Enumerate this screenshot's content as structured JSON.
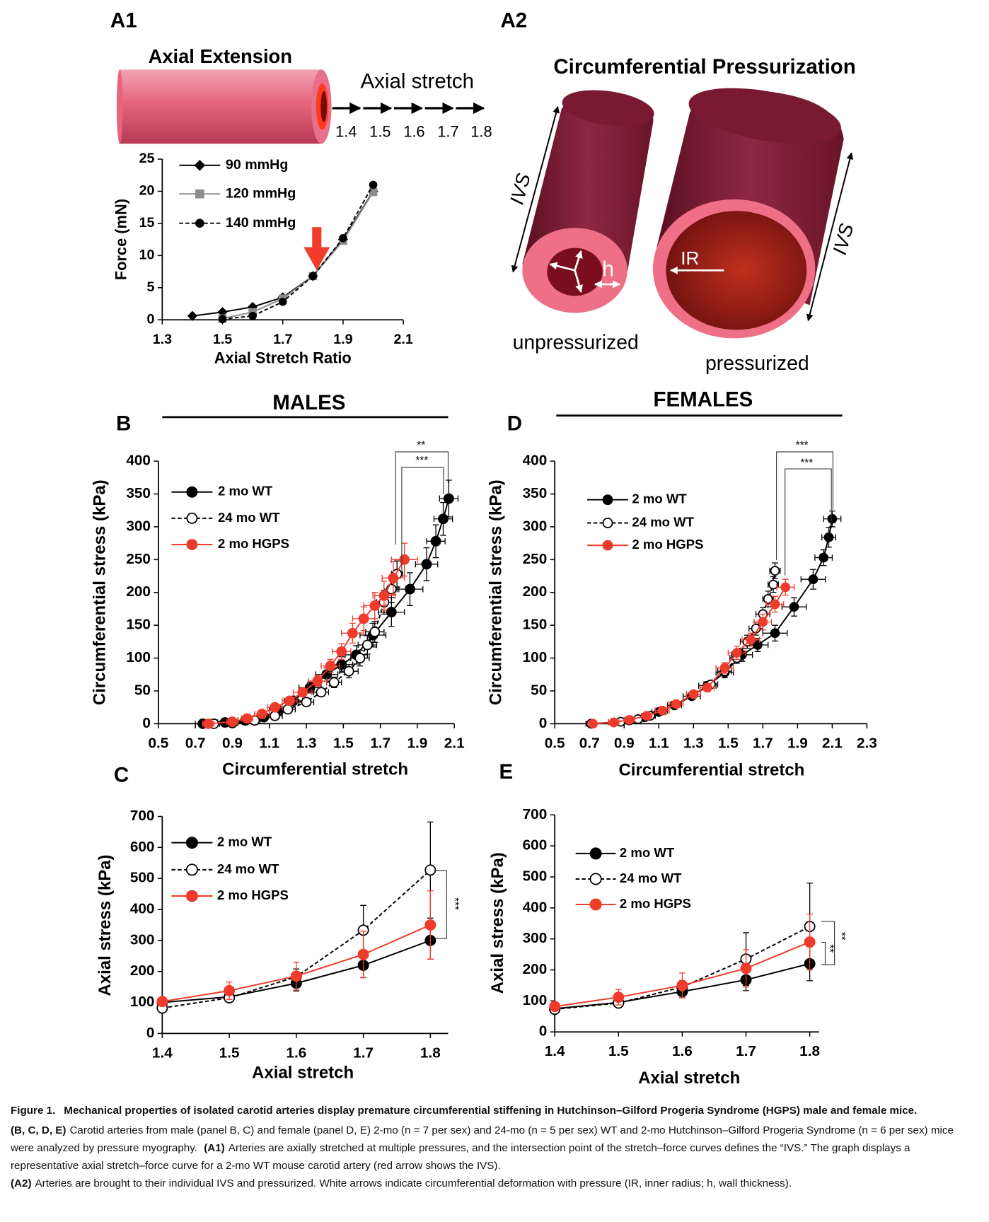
{
  "figure": {
    "a1": {
      "panel": "A1",
      "title": "Axial Extension",
      "stretch_label": "Axial stretch",
      "stretch_values": [
        1.4,
        1.5,
        1.6,
        1.7,
        1.8
      ]
    },
    "a2": {
      "panel": "A2",
      "title": "Circumferential Pressurization",
      "ivs_left": "IVS",
      "ivs_right": "IVS",
      "ir": "IR",
      "h": "h",
      "left_label": "unpressurized",
      "right_label": "pressurized"
    },
    "males": "MALES",
    "females": "FEMALES"
  },
  "chart_data": [
    {
      "type": "line",
      "xlabel": "Axial Stretch Ratio",
      "ylabel": "Force (mN)",
      "xlim": [
        1.3,
        2.1
      ],
      "xticks": [
        1.3,
        1.5,
        1.7,
        1.9,
        2.1
      ],
      "ylim": [
        0,
        25
      ],
      "yticks": [
        0,
        5,
        10,
        15,
        20,
        25
      ],
      "legend": "upper left",
      "series": [
        {
          "name": "90 mmHg",
          "color": "#000000",
          "marker": "diamond",
          "filled": true,
          "dashed": false,
          "x": [
            1.4,
            1.5,
            1.6,
            1.7,
            1.8,
            1.9,
            2.0
          ],
          "values": [
            0.6,
            1.2,
            2.0,
            3.5,
            6.8,
            12.5,
            20
          ]
        },
        {
          "name": "120 mmHg",
          "color": "#8c8c8c",
          "marker": "square",
          "filled": true,
          "dashed": false,
          "x": [
            1.5,
            1.6,
            1.7,
            1.8,
            1.9,
            2.0
          ],
          "values": [
            0.2,
            1.2,
            3.3,
            6.8,
            12.3,
            19.9
          ]
        },
        {
          "name": "140 mmHg",
          "color": "#000000",
          "marker": "circle",
          "filled": true,
          "dashed": true,
          "x": [
            1.5,
            1.6,
            1.7,
            1.8,
            1.9,
            2.0
          ],
          "values": [
            0.1,
            0.6,
            2.8,
            6.8,
            12.7,
            21
          ]
        }
      ]
    },
    {
      "type": "line",
      "panel": "B",
      "xlabel": "Circumferential stretch",
      "ylabel": "Circumferential stress (kPa)",
      "xlim": [
        0.5,
        2.1
      ],
      "xticks": [
        0.5,
        0.7,
        0.9,
        1.1,
        1.3,
        1.5,
        1.7,
        1.9,
        2.1
      ],
      "ylim": [
        0,
        400
      ],
      "yticks": [
        0,
        50,
        100,
        150,
        200,
        250,
        300,
        350,
        400
      ],
      "legend": "upper left",
      "annotations": [
        "**",
        "***"
      ],
      "series": [
        {
          "name": "2 mo WT",
          "color": "#000000",
          "marker": "circle",
          "filled": true,
          "dashed": false,
          "x": [
            0.74,
            0.86,
            0.97,
            1.07,
            1.15,
            1.23,
            1.32,
            1.41,
            1.49,
            1.57,
            1.66,
            1.76,
            1.86,
            1.95,
            2.0,
            2.04,
            2.07
          ],
          "values": [
            0,
            2,
            5,
            10,
            20,
            35,
            55,
            75,
            90,
            105,
            135,
            170,
            205,
            243,
            278,
            312,
            343
          ],
          "xerr": [
            0.04,
            0.04,
            0.04,
            0.05,
            0.05,
            0.05,
            0.06,
            0.06,
            0.06,
            0.06,
            0.07,
            0.07,
            0.07,
            0.06,
            0.05,
            0.05,
            0.05
          ],
          "yerr": [
            1,
            1,
            2,
            3,
            4,
            6,
            8,
            10,
            12,
            14,
            18,
            22,
            25,
            25,
            25,
            25,
            28
          ]
        },
        {
          "name": "24 mo WT",
          "color": "#000000",
          "marker": "circle",
          "filled": false,
          "dashed": true,
          "x": [
            0.8,
            0.9,
            1.02,
            1.13,
            1.2,
            1.3,
            1.38,
            1.45,
            1.53,
            1.59,
            1.63,
            1.67,
            1.72,
            1.76,
            1.79
          ],
          "values": [
            0,
            1,
            5,
            12,
            22,
            33,
            48,
            63,
            80,
            100,
            120,
            140,
            185,
            205,
            228
          ],
          "xerr": [
            0.03,
            0.03,
            0.03,
            0.04,
            0.04,
            0.04,
            0.04,
            0.04,
            0.05,
            0.05,
            0.05,
            0.05,
            0.04,
            0.04,
            0.03
          ],
          "yerr": [
            1,
            1,
            2,
            3,
            3,
            5,
            6,
            8,
            10,
            12,
            14,
            16,
            18,
            20,
            20
          ]
        },
        {
          "name": "2 mo HGPS",
          "color": "#ef3b2c",
          "marker": "circle",
          "filled": true,
          "dashed": false,
          "x": [
            0.77,
            0.9,
            0.98,
            1.06,
            1.13,
            1.21,
            1.28,
            1.36,
            1.43,
            1.49,
            1.55,
            1.61,
            1.67,
            1.72,
            1.77,
            1.83
          ],
          "values": [
            0,
            3,
            8,
            15,
            25,
            35,
            48,
            65,
            88,
            110,
            138,
            160,
            180,
            195,
            222,
            250
          ],
          "xerr": [
            0.03,
            0.03,
            0.03,
            0.04,
            0.04,
            0.04,
            0.05,
            0.05,
            0.05,
            0.05,
            0.06,
            0.06,
            0.06,
            0.06,
            0.06,
            0.07
          ],
          "yerr": [
            1,
            2,
            2,
            3,
            4,
            5,
            6,
            8,
            10,
            12,
            15,
            18,
            20,
            22,
            25,
            25
          ]
        }
      ]
    },
    {
      "type": "line",
      "panel": "D",
      "xlabel": "Circumferential stretch",
      "ylabel": "Circumferential stress (kPa)",
      "xlim": [
        0.5,
        2.3
      ],
      "xticks": [
        0.5,
        0.7,
        0.9,
        1.1,
        1.3,
        1.5,
        1.7,
        1.9,
        2.1,
        2.3
      ],
      "ylim": [
        0,
        400
      ],
      "yticks": [
        0,
        50,
        100,
        150,
        200,
        250,
        300,
        350,
        400
      ],
      "legend": "upper left",
      "annotations": [
        "***",
        "***"
      ],
      "series": [
        {
          "name": "2 mo WT",
          "color": "#000000",
          "marker": "circle",
          "filled": true,
          "dashed": false,
          "x": [
            0.71,
            0.84,
            0.93,
            1.02,
            1.1,
            1.19,
            1.29,
            1.38,
            1.48,
            1.58,
            1.67,
            1.77,
            1.88,
            1.99,
            2.05,
            2.08,
            2.1
          ],
          "values": [
            0,
            2,
            5,
            10,
            18,
            28,
            42,
            58,
            78,
            105,
            120,
            138,
            178,
            220,
            253,
            284,
            312
          ],
          "xerr": [
            0.03,
            0.03,
            0.03,
            0.04,
            0.04,
            0.04,
            0.05,
            0.05,
            0.05,
            0.06,
            0.06,
            0.07,
            0.07,
            0.07,
            0.05,
            0.04,
            0.05
          ],
          "yerr": [
            1,
            1,
            1,
            2,
            3,
            4,
            5,
            6,
            8,
            10,
            10,
            12,
            14,
            15,
            12,
            15,
            12
          ]
        },
        {
          "name": "24 mo WT",
          "color": "#000000",
          "marker": "circle",
          "filled": false,
          "dashed": true,
          "x": [
            0.71,
            0.88,
            0.98,
            1.05,
            1.12,
            1.2,
            1.3,
            1.4,
            1.48,
            1.55,
            1.61,
            1.66,
            1.7,
            1.73,
            1.76,
            1.77
          ],
          "values": [
            0,
            3,
            7,
            12,
            20,
            30,
            45,
            60,
            80,
            100,
            125,
            145,
            167,
            190,
            212,
            233
          ],
          "xerr": [
            0.02,
            0.02,
            0.03,
            0.03,
            0.03,
            0.03,
            0.04,
            0.04,
            0.04,
            0.04,
            0.04,
            0.04,
            0.04,
            0.03,
            0.03,
            0.03
          ],
          "yerr": [
            1,
            1,
            1,
            2,
            2,
            3,
            4,
            5,
            6,
            8,
            10,
            10,
            10,
            12,
            12,
            12
          ]
        },
        {
          "name": "2 mo HGPS",
          "color": "#ef3b2c",
          "marker": "circle",
          "filled": true,
          "dashed": false,
          "x": [
            0.72,
            0.84,
            0.93,
            1.03,
            1.12,
            1.2,
            1.3,
            1.38,
            1.48,
            1.55,
            1.63,
            1.7,
            1.77,
            1.83
          ],
          "values": [
            0,
            2,
            6,
            12,
            20,
            30,
            45,
            55,
            85,
            108,
            128,
            155,
            182,
            208
          ],
          "xerr": [
            0.02,
            0.03,
            0.03,
            0.03,
            0.04,
            0.04,
            0.04,
            0.04,
            0.05,
            0.05,
            0.05,
            0.05,
            0.05,
            0.05
          ],
          "yerr": [
            1,
            1,
            2,
            2,
            3,
            4,
            5,
            6,
            8,
            10,
            10,
            12,
            12,
            12
          ]
        }
      ]
    },
    {
      "type": "line",
      "panel": "C",
      "xlabel": "Axial stretch",
      "ylabel": "Axial stress (kPa)",
      "xlim": [
        1.4,
        1.8
      ],
      "xticks": [
        1.4,
        1.5,
        1.6,
        1.7,
        1.8
      ],
      "ylim": [
        0,
        700
      ],
      "yticks": [
        0,
        100,
        200,
        300,
        400,
        500,
        600,
        700
      ],
      "legend": "upper left",
      "annotations": [
        "***"
      ],
      "series": [
        {
          "name": "2 mo WT",
          "color": "#000000",
          "marker": "circle",
          "filled": true,
          "dashed": false,
          "x": [
            1.4,
            1.5,
            1.6,
            1.7,
            1.8
          ],
          "values": [
            100,
            118,
            162,
            220,
            300
          ],
          "yerr": [
            8,
            8,
            25,
            40,
            60
          ]
        },
        {
          "name": "24 mo WT",
          "color": "#000000",
          "marker": "circle",
          "filled": false,
          "dashed": true,
          "x": [
            1.4,
            1.5,
            1.6,
            1.7,
            1.8
          ],
          "values": [
            82,
            115,
            183,
            333,
            527
          ],
          "yerr": [
            10,
            8,
            25,
            80,
            155
          ]
        },
        {
          "name": "2 mo HGPS",
          "color": "#ef3b2c",
          "marker": "circle",
          "filled": true,
          "dashed": false,
          "x": [
            1.4,
            1.5,
            1.6,
            1.7,
            1.8
          ],
          "values": [
            103,
            138,
            185,
            255,
            350
          ],
          "yerr": [
            10,
            28,
            45,
            75,
            110
          ]
        }
      ]
    },
    {
      "type": "line",
      "panel": "E",
      "xlabel": "Axial stretch",
      "ylabel": "Axial stress (kPa)",
      "xlim": [
        1.4,
        1.8
      ],
      "xticks": [
        1.4,
        1.5,
        1.6,
        1.7,
        1.8
      ],
      "ylim": [
        0,
        700
      ],
      "yticks": [
        0,
        100,
        200,
        300,
        400,
        500,
        600,
        700
      ],
      "legend": "upper left",
      "annotations": [
        "**",
        "**"
      ],
      "series": [
        {
          "name": "2 mo WT",
          "color": "#000000",
          "marker": "circle",
          "filled": true,
          "dashed": false,
          "x": [
            1.4,
            1.5,
            1.6,
            1.7,
            1.8
          ],
          "values": [
            75,
            95,
            130,
            168,
            220
          ],
          "yerr": [
            8,
            10,
            20,
            35,
            55
          ]
        },
        {
          "name": "24 mo WT",
          "color": "#000000",
          "marker": "circle",
          "filled": false,
          "dashed": true,
          "x": [
            1.4,
            1.5,
            1.6,
            1.7,
            1.8
          ],
          "values": [
            73,
            93,
            145,
            235,
            340
          ],
          "yerr": [
            8,
            8,
            20,
            85,
            140
          ]
        },
        {
          "name": "2 mo HGPS",
          "color": "#ef3b2c",
          "marker": "circle",
          "filled": true,
          "dashed": false,
          "x": [
            1.4,
            1.5,
            1.6,
            1.7,
            1.8
          ],
          "values": [
            82,
            112,
            150,
            205,
            290
          ],
          "yerr": [
            8,
            25,
            40,
            60,
            90
          ]
        }
      ]
    }
  ],
  "caption": {
    "label": "Figure 1.",
    "title": "Mechanical properties of isolated carotid arteries display premature circumferential stiffening in Hutchinson–Gilford Progeria Syndrome (HGPS) male and female mice.",
    "paragraphs": [
      [
        {
          "label": "(B, C, D, E)",
          "text": "Carotid arteries from male (panel B, C) and female (panel D, E) 2-mo (n = 7 per sex) and 24-mo (n = 5 per sex) WT and 2-mo Hutchinson–Gilford Progeria Syndrome (n = 6 per sex) mice were analyzed by pressure myography."
        },
        {
          "label": "(A1)",
          "text": "Arteries are axially stretched at multiple pressures, and the intersection point of the stretch–force curves defines the “IVS.” The graph displays a representative axial stretch–force curve for a 2-mo WT mouse carotid artery (red arrow shows the IVS)."
        }
      ],
      [
        {
          "label": "(A2)",
          "text": "Arteries are brought to their individual IVS and pressurized. White arrows indicate circumferential deformation with pressure (IR, inner radius; h, wall thickness)."
        }
      ]
    ]
  }
}
